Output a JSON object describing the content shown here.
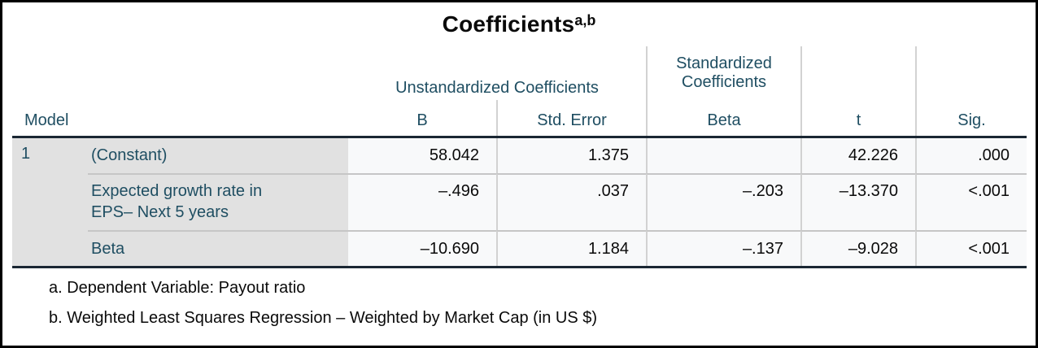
{
  "title": {
    "text": "Coefficients",
    "superscript": "a,b"
  },
  "table": {
    "stub_header": "Model",
    "model_number": "1",
    "groups": {
      "unstandardized": "Unstandardized Coefficients",
      "standardized": "Standardized Coefficients"
    },
    "columns": [
      "B",
      "Std. Error",
      "Beta",
      "t",
      "Sig."
    ],
    "rows": [
      {
        "label": "(Constant)",
        "b": "58.042",
        "std_error": "1.375",
        "beta": "",
        "t": "42.226",
        "sig": ".000"
      },
      {
        "label": "Expected growth rate in EPS– Next 5 years",
        "b": "–.496",
        "std_error": ".037",
        "beta": "–.203",
        "t": "–13.370",
        "sig": "<.001"
      },
      {
        "label": "Beta",
        "b": "–10.690",
        "std_error": "1.184",
        "beta": "–.137",
        "t": "–9.028",
        "sig": "<.001"
      }
    ],
    "footnotes": [
      "a. Dependent Variable: Payout ratio",
      "b. Weighted Least Squares Regression – Weighted by Market Cap (in US $)"
    ]
  },
  "colors": {
    "header_text": "#1f4e62",
    "stub_background": "#e1e1e1",
    "data_background": "#f8f9fa",
    "thick_rule": "#1a2733",
    "light_rule": "#c6c6c6",
    "outer_border": "#000000"
  },
  "chart_data": {
    "type": "table",
    "title": "Coefficients",
    "title_footnote_marks": "a,b",
    "stub_columns": [
      "Model",
      "Predictor"
    ],
    "column_groups": [
      {
        "label": "Unstandardized Coefficients",
        "columns": [
          "B",
          "Std. Error"
        ]
      },
      {
        "label": "Standardized Coefficients",
        "columns": [
          "Beta"
        ]
      },
      {
        "label": "",
        "columns": [
          "t",
          "Sig."
        ]
      }
    ],
    "model": "1",
    "rows": [
      {
        "predictor": "(Constant)",
        "B": 58.042,
        "std_error": 1.375,
        "beta": null,
        "t": 42.226,
        "sig": "0.000"
      },
      {
        "predictor": "Expected growth rate in EPS– Next 5 years",
        "B": -0.496,
        "std_error": 0.037,
        "beta": -0.203,
        "t": -13.37,
        "sig": "<.001"
      },
      {
        "predictor": "Beta",
        "B": -10.69,
        "std_error": 1.184,
        "beta": -0.137,
        "t": -9.028,
        "sig": "<.001"
      }
    ],
    "footnotes": [
      "a. Dependent Variable: Payout ratio",
      "b. Weighted Least Squares Regression – Weighted by Market Cap (in US $)"
    ]
  }
}
